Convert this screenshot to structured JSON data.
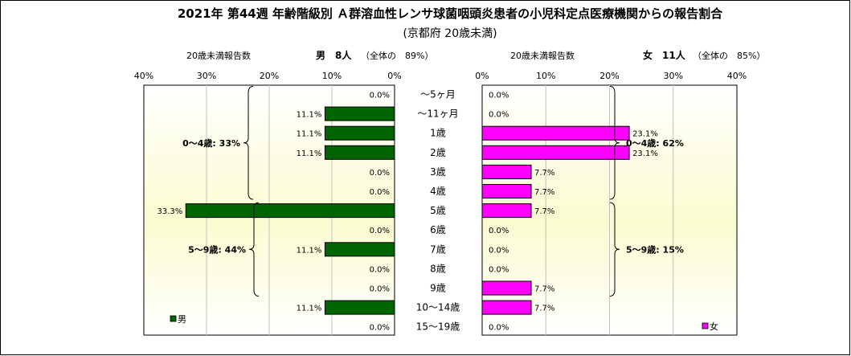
{
  "chart_data": {
    "type": "bar",
    "title": "2021年 第44週 年齢階級別 Ａ群溶血性レンサ球菌咽頭炎患者の小児科定点医療機関からの報告割合",
    "subtitle": "(京都府 20歳未満)",
    "categories": [
      "～5ヶ月",
      "～11ヶ月",
      "1歳",
      "2歳",
      "3歳",
      "4歳",
      "5歳",
      "6歳",
      "7歳",
      "8歳",
      "9歳",
      "10～14歳",
      "15～19歳"
    ],
    "xlim": [
      0,
      40
    ],
    "x_ticks": [
      "0%",
      "10%",
      "20%",
      "30%",
      "40%"
    ],
    "grid": true,
    "series": [
      {
        "name": "男",
        "color": "#006400",
        "side": "left",
        "panel_header": {
          "count_label": "20歳未満報告数",
          "summary": "男　8人",
          "share": "（全体の　89%）"
        },
        "values": [
          0.0,
          11.1,
          11.1,
          11.1,
          0.0,
          0.0,
          33.3,
          0.0,
          11.1,
          0.0,
          0.0,
          11.1,
          0.0
        ],
        "value_labels": [
          "0.0%",
          "11.1%",
          "11.1%",
          "11.1%",
          "0.0%",
          "0.0%",
          "33.3%",
          "0.0%",
          "11.1%",
          "0.0%",
          "0.0%",
          "11.1%",
          "0.0%"
        ],
        "groups": [
          {
            "label": "0～4歳: 33%",
            "from": 0,
            "to": 5
          },
          {
            "label": "5～9歳: 44%",
            "from": 6,
            "to": 10
          }
        ]
      },
      {
        "name": "女",
        "color": "#FF00FF",
        "side": "right",
        "panel_header": {
          "count_label": "20歳未満報告数",
          "summary": "女　11人",
          "share": "（全体の　85%）"
        },
        "values": [
          0.0,
          0.0,
          23.1,
          23.1,
          7.7,
          7.7,
          7.7,
          0.0,
          0.0,
          0.0,
          7.7,
          7.7,
          0.0
        ],
        "value_labels": [
          "0.0%",
          "0.0%",
          "23.1%",
          "23.1%",
          "7.7%",
          "7.7%",
          "7.7%",
          "0.0%",
          "0.0%",
          "0.0%",
          "7.7%",
          "7.7%",
          "0.0%"
        ],
        "groups": [
          {
            "label": "0～4歳: 62%",
            "from": 0,
            "to": 5
          },
          {
            "label": "5～9歳: 15%",
            "from": 6,
            "to": 10
          }
        ]
      }
    ]
  }
}
